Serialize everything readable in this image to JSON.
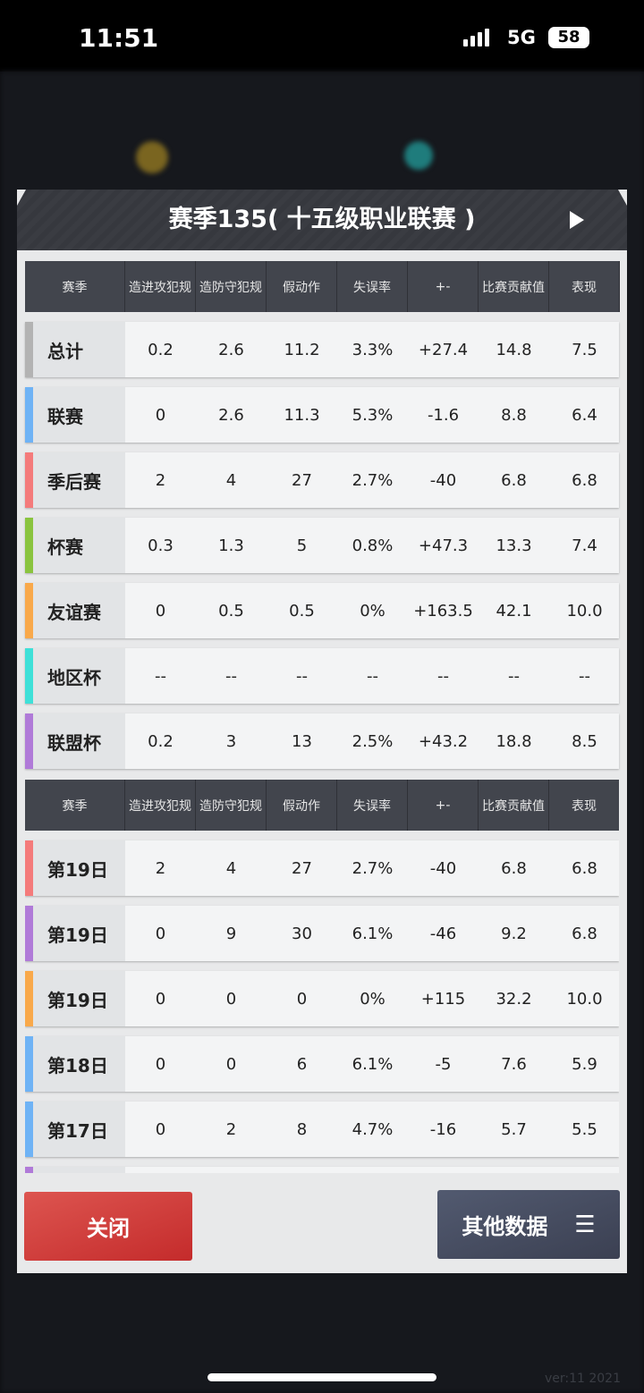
{
  "status_bar": {
    "time": "11:51",
    "network": "5G",
    "battery": "58"
  },
  "modal": {
    "title": "赛季135( 十五级职业联赛 )",
    "columns": [
      "赛季",
      "造进攻犯规",
      "造防守犯规",
      "假动作",
      "失误率",
      "+-",
      "比赛贡献值",
      "表现"
    ],
    "season_rows": [
      {
        "label": "总计",
        "color": "#b3b3b3",
        "values": [
          "0.2",
          "2.6",
          "11.2",
          "3.3%",
          "+27.4",
          "14.8",
          "7.5"
        ]
      },
      {
        "label": "联赛",
        "color": "#6fb3f5",
        "values": [
          "0",
          "2.6",
          "11.3",
          "5.3%",
          "-1.6",
          "8.8",
          "6.4"
        ]
      },
      {
        "label": "季后赛",
        "color": "#f47b7b",
        "values": [
          "2",
          "4",
          "27",
          "2.7%",
          "-40",
          "6.8",
          "6.8"
        ]
      },
      {
        "label": "杯赛",
        "color": "#8ac43f",
        "values": [
          "0.3",
          "1.3",
          "5",
          "0.8%",
          "+47.3",
          "13.3",
          "7.4"
        ]
      },
      {
        "label": "友谊赛",
        "color": "#f9a94b",
        "values": [
          "0",
          "0.5",
          "0.5",
          "0%",
          "+163.5",
          "42.1",
          "10.0"
        ]
      },
      {
        "label": "地区杯",
        "color": "#3fe0d8",
        "values": [
          "--",
          "--",
          "--",
          "--",
          "--",
          "--",
          "--"
        ]
      },
      {
        "label": "联盟杯",
        "color": "#b07ad8",
        "values": [
          "0.2",
          "3",
          "13",
          "2.5%",
          "+43.2",
          "18.8",
          "8.5"
        ]
      }
    ],
    "game_rows": [
      {
        "label": "第19日",
        "color": "#f47b7b",
        "values": [
          "2",
          "4",
          "27",
          "2.7%",
          "-40",
          "6.8",
          "6.8"
        ]
      },
      {
        "label": "第19日",
        "color": "#b07ad8",
        "values": [
          "0",
          "9",
          "30",
          "6.1%",
          "-46",
          "9.2",
          "6.8"
        ]
      },
      {
        "label": "第19日",
        "color": "#f9a94b",
        "values": [
          "0",
          "0",
          "0",
          "0%",
          "+115",
          "32.2",
          "10.0"
        ]
      },
      {
        "label": "第18日",
        "color": "#6fb3f5",
        "values": [
          "0",
          "0",
          "6",
          "6.1%",
          "-5",
          "7.6",
          "5.9"
        ]
      },
      {
        "label": "第17日",
        "color": "#6fb3f5",
        "values": [
          "0",
          "2",
          "8",
          "4.7%",
          "-16",
          "5.7",
          "5.5"
        ]
      }
    ],
    "close_label": "关闭",
    "other_label": "其他数据"
  },
  "version": "ver:11  2021"
}
